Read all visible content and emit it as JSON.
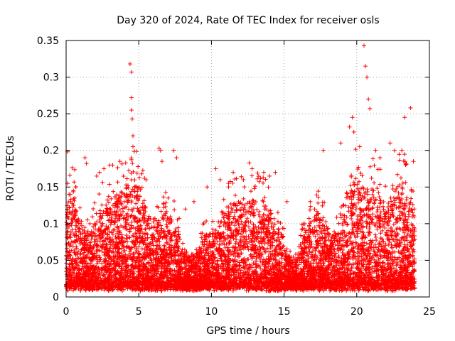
{
  "chart_data": {
    "type": "scatter",
    "title": "Day 320 of 2024, Rate Of TEC Index for receiver osls",
    "xlabel": "GPS time / hours",
    "ylabel": "ROTI / TECUs",
    "xlim": [
      0,
      25
    ],
    "ylim": [
      0,
      0.35
    ],
    "xticks": [
      0,
      5,
      10,
      15,
      20,
      25
    ],
    "xtick_labels": [
      "0",
      "5",
      "10",
      "15",
      "20",
      "25"
    ],
    "yticks": [
      0,
      0.05,
      0.1,
      0.15,
      0.2,
      0.25,
      0.3,
      0.35
    ],
    "ytick_labels": [
      "0",
      "0.05",
      "0.1",
      "0.15",
      "0.2",
      "0.25",
      "0.3",
      "0.35"
    ],
    "grid": true,
    "marker": "+",
    "color": "#ff0000",
    "series": [
      {
        "x": [
          0.1,
          0.1,
          0.2,
          0.3,
          0.5,
          0.6,
          1.3,
          1.4,
          2.1,
          2.3,
          2.6,
          3.0,
          3.2,
          3.7,
          4.1,
          4.4,
          4.5,
          4.5,
          4.5,
          4.55,
          4.6,
          4.6,
          5.2,
          5.5,
          6.4,
          6.5,
          6.6,
          7.4,
          7.6,
          8.2,
          8.8,
          9.7,
          10.3,
          10.6,
          11.5,
          12.2,
          12.6,
          12.8,
          13.6,
          14.0,
          14.4,
          15.2,
          16.8,
          17.1,
          17.7,
          18.9,
          19.5,
          19.7,
          19.8,
          20.2,
          20.5,
          20.6,
          20.7,
          20.8,
          20.9,
          21.3,
          21.6,
          22.3,
          22.6,
          23.1,
          23.3,
          23.7,
          23.9
        ],
        "y": [
          0.198,
          0.155,
          0.14,
          0.13,
          0.145,
          0.135,
          0.19,
          0.182,
          0.165,
          0.17,
          0.175,
          0.18,
          0.18,
          0.185,
          0.183,
          0.318,
          0.307,
          0.272,
          0.255,
          0.243,
          0.22,
          0.205,
          0.168,
          0.16,
          0.203,
          0.2,
          0.185,
          0.2,
          0.19,
          0.12,
          0.13,
          0.15,
          0.175,
          0.16,
          0.17,
          0.16,
          0.183,
          0.175,
          0.17,
          0.165,
          0.17,
          0.13,
          0.13,
          0.12,
          0.2,
          0.21,
          0.232,
          0.245,
          0.225,
          0.205,
          0.343,
          0.315,
          0.3,
          0.27,
          0.257,
          0.2,
          0.19,
          0.21,
          0.2,
          0.2,
          0.245,
          0.258,
          0.185
        ]
      }
    ]
  }
}
